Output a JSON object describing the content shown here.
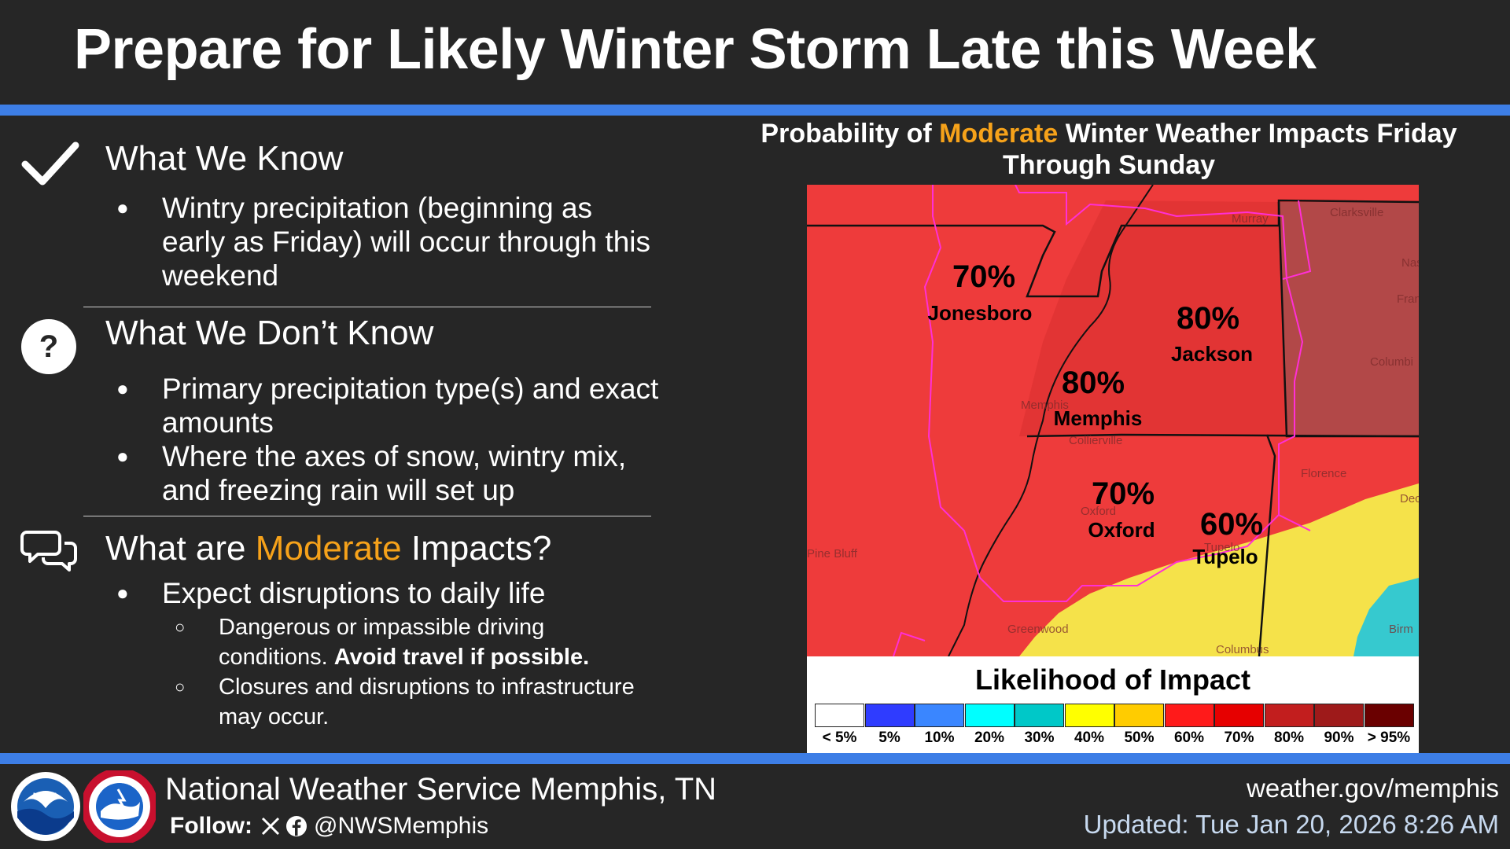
{
  "header": {
    "title": "Prepare for Likely Winter Storm Late this Week"
  },
  "sections": {
    "know": {
      "icon": "checkmark-icon",
      "heading": "What We Know",
      "bullets": [
        "Wintry precipitation (beginning as early as Friday) will occur through this weekend"
      ]
    },
    "dont_know": {
      "icon": "question-mark-icon",
      "heading": "What We Don’t Know",
      "bullets": [
        "Primary precipitation type(s) and exact amounts",
        "Where the axes of snow, wintry mix, and freezing rain will set up"
      ]
    },
    "impacts": {
      "icon": "chat-bubbles-icon",
      "heading_pre": "What are ",
      "heading_accent": "Moderate",
      "heading_post": " Impacts?",
      "bullet": "Expect disruptions to daily life",
      "sub1_text": "Dangerous or impassible driving conditions.",
      "sub1_bold": "Avoid travel if possible.",
      "sub2": "Closures and disruptions to infrastructure may occur."
    }
  },
  "map": {
    "title_pre": "Probability of ",
    "title_accent": "Moderate",
    "title_post": " Winter Weather Impacts Friday Through Sunday",
    "labels": [
      {
        "pct": "70%",
        "city": "Jonesboro"
      },
      {
        "pct": "80%",
        "city": "Jackson"
      },
      {
        "pct": "80%",
        "city": "Memphis"
      },
      {
        "pct": "70%",
        "city": "Oxford"
      },
      {
        "pct": "60%",
        "city": "Tupelo"
      }
    ],
    "faint_towns": [
      "Clarksville",
      "Murray",
      "Nas",
      "Fran",
      "Columbi",
      "Collierville",
      "Florence",
      "Decat",
      "Pine Bluff",
      "Greenwood",
      "Columbus",
      "Birm",
      "Tupelo",
      "Oxford",
      "Memphis"
    ]
  },
  "legend": {
    "title": "Likelihood of Impact",
    "items": [
      {
        "label": "< 5%",
        "color": "#ffffff"
      },
      {
        "label": "5%",
        "color": "#2f3cff"
      },
      {
        "label": "10%",
        "color": "#3a86ff"
      },
      {
        "label": "20%",
        "color": "#00ffff"
      },
      {
        "label": "30%",
        "color": "#00c8c8"
      },
      {
        "label": "40%",
        "color": "#ffff00"
      },
      {
        "label": "50%",
        "color": "#ffcc00"
      },
      {
        "label": "60%",
        "color": "#ff1a1a"
      },
      {
        "label": "70%",
        "color": "#e60000"
      },
      {
        "label": "80%",
        "color": "#c21e1e"
      },
      {
        "label": "90%",
        "color": "#9e1a1a"
      },
      {
        "label": "> 95%",
        "color": "#6a0000"
      }
    ]
  },
  "footer": {
    "org": "National Weather Service Memphis, TN",
    "follow_label": "Follow:",
    "handle": "@NWSMemphis",
    "website": "weather.gov/memphis",
    "updated": "Updated: Tue Jan 20, 2026 8:26 AM",
    "logos": [
      "noaa-logo",
      "nws-logo"
    ],
    "logo_text": {
      "noaa": "NOAA",
      "nws_ring": "NATIONAL WEATHER SERVICE"
    },
    "social_icons": [
      "x-icon",
      "facebook-icon"
    ]
  },
  "colors": {
    "background": "#262626",
    "accent_orange": "#f6a21a",
    "blue_bar": "#3d7ee6",
    "updated_text": "#c7d9ef"
  }
}
